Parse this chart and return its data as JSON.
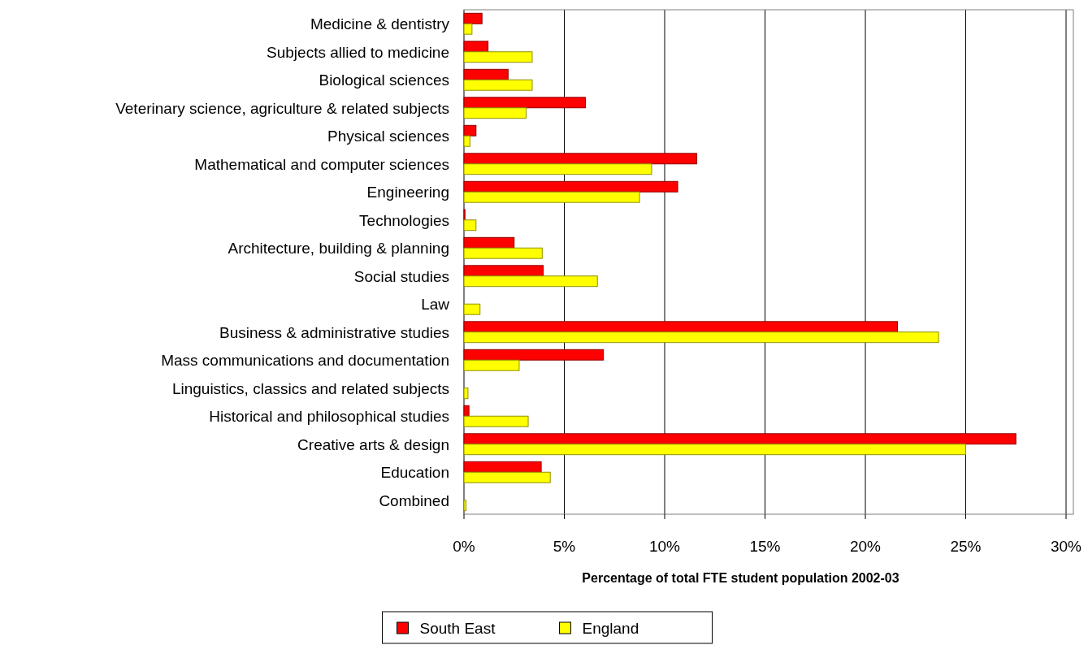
{
  "chart_data": {
    "type": "bar",
    "orientation": "horizontal",
    "xlabel": "Percentage of total FTE student population 2002-03",
    "categories": [
      "Medicine & dentistry",
      "Subjects allied to medicine",
      "Biological sciences",
      "Veterinary science, agriculture & related subjects",
      "Physical sciences",
      "Mathematical and computer sciences",
      "Engineering",
      "Technologies",
      "Architecture, building & planning",
      "Social studies",
      "Law",
      "Business & administrative studies",
      "Mass communications and documentation",
      "Linguistics, classics and related subjects",
      "Historical and philosophical studies",
      "Creative arts & design",
      "Education",
      "Combined"
    ],
    "series": [
      {
        "name": "South East",
        "color": "#ff0000",
        "values": [
          0.9,
          1.2,
          2.2,
          6.05,
          0.6,
          11.6,
          10.65,
          0.05,
          2.5,
          3.95,
          null,
          21.6,
          6.95,
          null,
          0.25,
          27.5,
          3.85,
          null
        ]
      },
      {
        "name": "England",
        "color": "#ffff00",
        "values": [
          0.4,
          3.4,
          3.4,
          3.1,
          0.3,
          9.35,
          8.75,
          0.6,
          3.9,
          6.65,
          0.8,
          23.65,
          2.75,
          0.2,
          3.2,
          25,
          4.3,
          0.1
        ]
      }
    ],
    "xlim": [
      0,
      30
    ],
    "xticks": [
      {
        "value": 0,
        "label": "0%"
      },
      {
        "value": 5,
        "label": "5%"
      },
      {
        "value": 10,
        "label": "10%"
      },
      {
        "value": 15,
        "label": "15%"
      },
      {
        "value": 20,
        "label": "20%"
      },
      {
        "value": 25,
        "label": "25%"
      },
      {
        "value": 30,
        "label": "30%"
      }
    ],
    "grid": "x",
    "legend": "bottom"
  }
}
